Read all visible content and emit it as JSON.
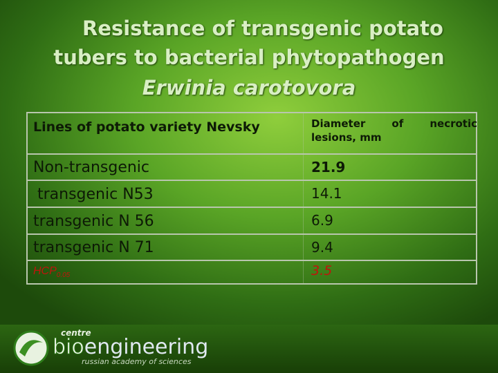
{
  "header": {
    "title_lines": [
      "Resistance of transgenic potato",
      "tubers to bacterial phytopathogen"
    ],
    "species": "Erwinia carotovora"
  },
  "table": {
    "columns": [
      "Lines of potato variety Nevsky",
      "Diameter of necrotic lesions, mm"
    ],
    "rows": [
      [
        "Non-transgenic",
        "21.9"
      ],
      [
        "transgenic N53",
        "14.1"
      ],
      [
        "transgenic N 56",
        "6.9"
      ],
      [
        "transgenic N 71",
        "9.4"
      ]
    ],
    "hcp": {
      "label": "HCP",
      "subscript": "0.05",
      "value": "3.5"
    }
  },
  "logo": {
    "top": "centre",
    "bio": "bio",
    "rest": "engineering",
    "subtitle": "russian academy of sciences"
  }
}
